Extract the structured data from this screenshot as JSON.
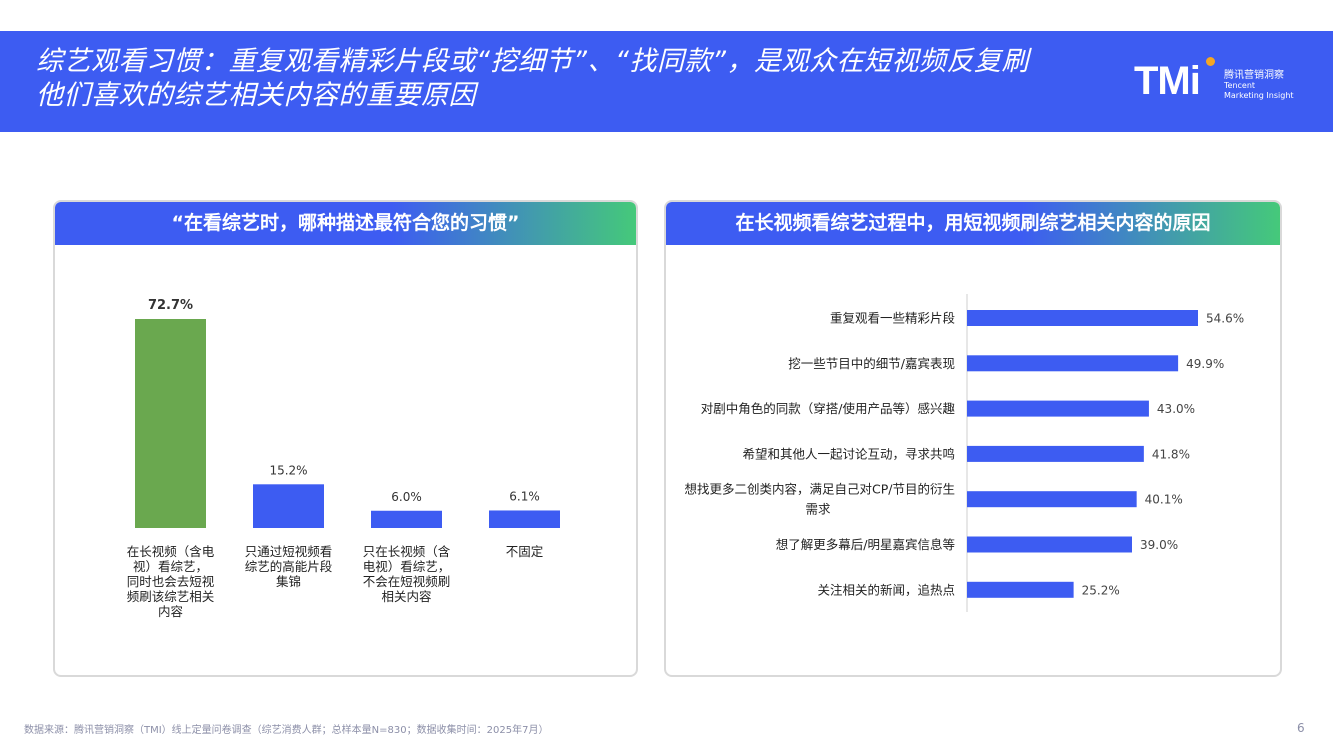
{
  "header": {
    "title_line1": "综艺观看习惯：重复观看精彩片段或“挖细节”、“找同款”，是观众在短视频反复刷",
    "title_line2": "他们喜欢的综艺相关内容的重要原因",
    "logo_mark": "TMi",
    "logo_cn": "腾讯营销洞察",
    "logo_en_line1": "Tencent",
    "logo_en_line2": "Marketing Insight"
  },
  "left_panel": {
    "title": "“在看综艺时，哪种描述最符合您的习惯”"
  },
  "right_panel": {
    "title": "在长视频看综艺过程中，用短视频刷综艺相关内容的原因"
  },
  "chart_data": [
    {
      "type": "bar",
      "orientation": "vertical",
      "categories": [
        "在长视频（含电视）看综艺，同时也会去短视频刷该综艺相关内容",
        "只通过短视频看综艺的高能片段集锦",
        "只在长视频（含电视）看综艺，不会在短视频刷相关内容",
        "不固定"
      ],
      "category_lines": [
        [
          "在长视频（含电",
          "视）看综艺，",
          "同时也会去短视",
          "频刷该综艺相关",
          "内容"
        ],
        [
          "只通过短视频看",
          "综艺的高能片段",
          "集锦"
        ],
        [
          "只在长视频（含",
          "电视）看综艺，",
          "不会在短视频刷",
          "相关内容"
        ],
        [
          "不固定"
        ]
      ],
      "values": [
        72.7,
        15.2,
        6.0,
        6.1
      ],
      "value_labels": [
        "72.7%",
        "15.2%",
        "6.0%",
        "6.1%"
      ],
      "colors": [
        "#6aa84f",
        "#3d5cf2",
        "#3d5cf2",
        "#3d5cf2"
      ],
      "ylim": [
        0,
        72.7
      ],
      "grid": false
    },
    {
      "type": "bar",
      "orientation": "horizontal",
      "categories": [
        "重复观看一些精彩片段",
        "挖一些节目中的细节/嘉宾表现",
        "对剧中角色的同款（穿搭/使用产品等）感兴趣",
        "希望和其他人一起讨论互动，寻求共鸣",
        "想找更多二创类内容，满足自己对CP/节目的衍生需求",
        "想了解更多幕后/明星嘉宾信息等",
        "关注相关的新闻，追热点"
      ],
      "category_lines": [
        [
          "重复观看一些精彩片段"
        ],
        [
          "挖一些节目中的细节/嘉宾表现"
        ],
        [
          "对剧中角色的同款（穿搭/使用产品等）感兴趣"
        ],
        [
          "希望和其他人一起讨论互动，寻求共鸣"
        ],
        [
          "想找更多二创类内容，满足自己对CP/节目的衍生",
          "需求"
        ],
        [
          "想了解更多幕后/明星嘉宾信息等"
        ],
        [
          "关注相关的新闻，追热点"
        ]
      ],
      "values": [
        54.6,
        49.9,
        43.0,
        41.8,
        40.1,
        39.0,
        25.2
      ],
      "value_labels": [
        "54.6%",
        "49.9%",
        "43.0%",
        "41.8%",
        "40.1%",
        "39.0%",
        "25.2%"
      ],
      "color": "#3d5cf2",
      "xlim": [
        0,
        54.6
      ],
      "grid": false
    }
  ],
  "footer": {
    "source": "数据来源：腾讯营销洞察（TMI）线上定量问卷调查（综艺消费人群；总样本量N=830；数据收集时间：2025年7月）",
    "page_number": "6"
  }
}
